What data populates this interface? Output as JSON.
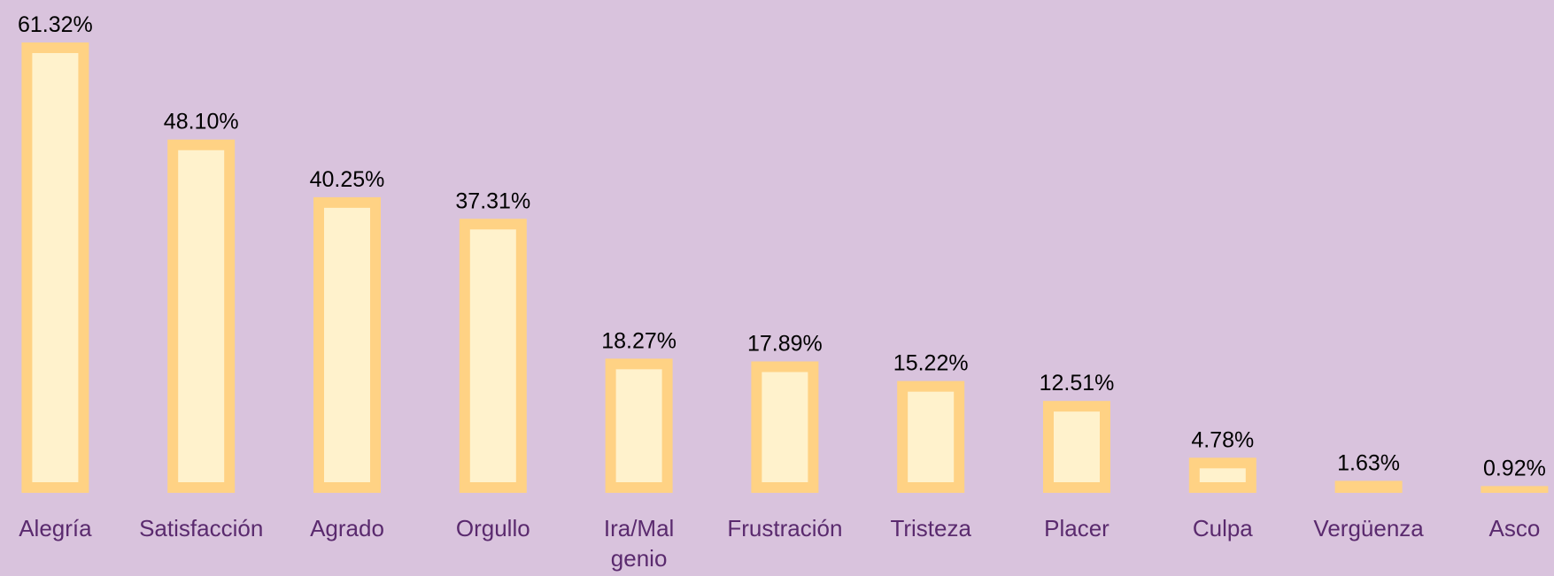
{
  "chart_data": {
    "type": "bar",
    "categories": [
      "Alegría",
      "Satisfacción",
      "Agrado",
      "Orgullo",
      "Ira/Mal genio",
      "Frustración",
      "Tristeza",
      "Placer",
      "Culpa",
      "Vergüenza",
      "Asco"
    ],
    "values": [
      61.32,
      48.1,
      40.25,
      37.31,
      18.27,
      17.89,
      15.22,
      12.51,
      4.78,
      1.63,
      0.92
    ],
    "value_labels": [
      "61.32%",
      "48.10%",
      "40.25%",
      "37.31%",
      "18.27%",
      "17.89%",
      "15.22%",
      "12.51%",
      "4.78%",
      "1.63%",
      "0.92%"
    ],
    "color": "#ffd284",
    "inner_color": "#fff2cc"
  }
}
